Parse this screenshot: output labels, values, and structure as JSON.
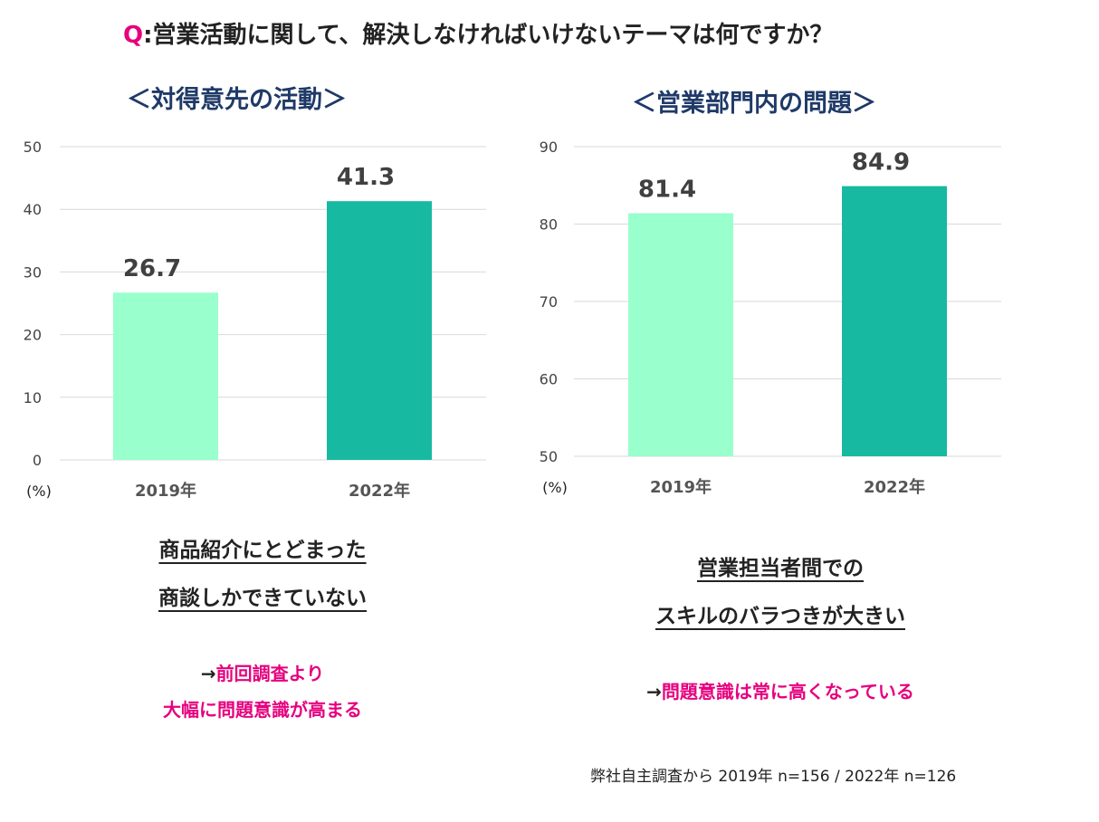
{
  "header": {
    "q_mark": "Q",
    "question": ":営業活動に関して、解決しなければいけないテーマは何ですか？"
  },
  "left": {
    "title": "＜対得意先の活動＞",
    "finding_line1": "商品紹介にとどまった",
    "finding_line2": "商談しかできていない",
    "note_arrow": "→",
    "note_line1": "前回調査より",
    "note_line2": "大幅に問題意識が高まる"
  },
  "right": {
    "title": "＜営業部門内の問題＞",
    "finding_line1": "営業担当者間での",
    "finding_line2": "スキルのバラつきが大きい",
    "note_arrow": "→",
    "note_line1": "問題意識は常に高くなっている"
  },
  "source": "弊社自主調査から  2019年 n=156 / 2022年 n=126",
  "colors": {
    "bar_2019": "#99ffcc",
    "bar_2022": "#17b9a1",
    "accent_pink": "#e6007e",
    "title_navy": "#1f3a68"
  },
  "chart_data": [
    {
      "type": "bar",
      "title": "＜対得意先の活動＞",
      "categories": [
        "2019年",
        "2022年"
      ],
      "values": [
        26.7,
        41.3
      ],
      "value_labels": [
        "26.7",
        "41.3"
      ],
      "ylim": [
        0,
        50
      ],
      "yticks": [
        0,
        10,
        20,
        30,
        40,
        50
      ],
      "unit": "(%)",
      "grid": true
    },
    {
      "type": "bar",
      "title": "＜営業部門内の問題＞",
      "categories": [
        "2019年",
        "2022年"
      ],
      "values": [
        81.4,
        84.9
      ],
      "value_labels": [
        "81.4",
        "84.9"
      ],
      "ylim": [
        50,
        90
      ],
      "yticks": [
        50,
        60,
        70,
        80,
        90
      ],
      "unit": "(%)",
      "grid": true
    }
  ]
}
